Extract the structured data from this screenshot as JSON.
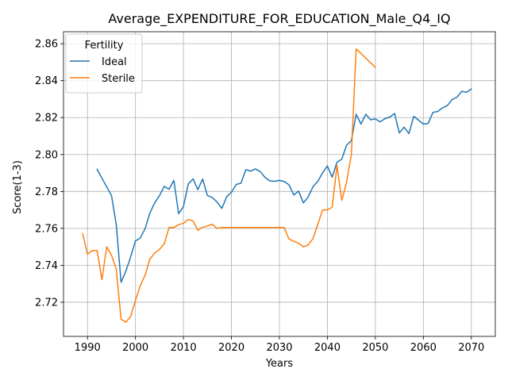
{
  "chart_data": {
    "type": "line",
    "title": "Average_EXPENDITURE_FOR_EDUCATION_Male_Q4_IQ",
    "xlabel": "Years",
    "ylabel": "Score(1-3)",
    "xlim": [
      1985,
      2075
    ],
    "ylim": [
      2.7015,
      2.8665
    ],
    "x_ticks": [
      1990,
      2000,
      2010,
      2020,
      2030,
      2040,
      2050,
      2060,
      2070
    ],
    "y_ticks": [
      2.72,
      2.74,
      2.76,
      2.78,
      2.8,
      2.82,
      2.84,
      2.86
    ],
    "y_tick_labels": [
      "2.72",
      "2.74",
      "2.76",
      "2.78",
      "2.80",
      "2.82",
      "2.84",
      "2.86"
    ],
    "grid": true,
    "legend": {
      "title": "Fertility",
      "location": "upper-left"
    },
    "series": [
      {
        "name": "Ideal",
        "color": "#1f77b4",
        "x": [
          1992,
          1993,
          1994,
          1995,
          1996,
          1997,
          1998,
          1999,
          2000,
          2001,
          2002,
          2003,
          2004,
          2005,
          2006,
          2007,
          2008,
          2009,
          2010,
          2011,
          2012,
          2013,
          2014,
          2015,
          2016,
          2017,
          2018,
          2019,
          2020,
          2021,
          2022,
          2023,
          2024,
          2025,
          2026,
          2027,
          2028,
          2029,
          2030,
          2031,
          2032,
          2033,
          2034,
          2035,
          2036,
          2037,
          2038,
          2039,
          2040,
          2041,
          2042,
          2043,
          2044,
          2045,
          2046,
          2047,
          2048,
          2049,
          2050,
          2051,
          2052,
          2053,
          2054,
          2055,
          2056,
          2057,
          2058,
          2059,
          2060,
          2061,
          2062,
          2063,
          2064,
          2065,
          2066,
          2067,
          2068,
          2069,
          2070
        ],
        "y": [
          2.792,
          2.7872,
          2.7825,
          2.7778,
          2.762,
          2.7308,
          2.7368,
          2.7446,
          2.7532,
          2.7548,
          2.7598,
          2.7683,
          2.7738,
          2.7777,
          2.7828,
          2.7812,
          2.786,
          2.768,
          2.7718,
          2.784,
          2.7868,
          2.781,
          2.7867,
          2.7778,
          2.7767,
          2.7743,
          2.7708,
          2.7771,
          2.7795,
          2.7838,
          2.7845,
          2.7918,
          2.791,
          2.7922,
          2.7908,
          2.7876,
          2.7857,
          2.7855,
          2.786,
          2.7854,
          2.7836,
          2.7781,
          2.7802,
          2.7738,
          2.777,
          2.7826,
          2.7855,
          2.79,
          2.7938,
          2.7877,
          2.7958,
          2.7975,
          2.805,
          2.8075,
          2.8218,
          2.8165,
          2.8218,
          2.8188,
          2.8193,
          2.8177,
          2.8194,
          2.8203,
          2.8222,
          2.8117,
          2.8148,
          2.8113,
          2.8207,
          2.8186,
          2.8165,
          2.8168,
          2.8228,
          2.8233,
          2.8253,
          2.8265,
          2.8298,
          2.831,
          2.8342,
          2.8337,
          2.8355
        ]
      },
      {
        "name": "Sterile",
        "color": "#ff7f0e",
        "x": [
          1989,
          1990,
          1991,
          1992,
          1993,
          1994,
          1995,
          1996,
          1997,
          1998,
          1999,
          2000,
          2001,
          2002,
          2003,
          2004,
          2005,
          2006,
          2007,
          2008,
          2009,
          2010,
          2011,
          2012,
          2013,
          2014,
          2015,
          2016,
          2017,
          2018,
          2019,
          2020,
          2021,
          2022,
          2023,
          2024,
          2025,
          2026,
          2027,
          2028,
          2029,
          2030,
          2031,
          2032,
          2033,
          2034,
          2035,
          2036,
          2037,
          2038,
          2039,
          2040,
          2041,
          2042,
          2043,
          2044,
          2045,
          2046,
          2047,
          2048,
          2049,
          2050
        ],
        "y": [
          2.7572,
          2.746,
          2.748,
          2.748,
          2.7322,
          2.75,
          2.7455,
          2.738,
          2.7108,
          2.7092,
          2.7123,
          2.721,
          2.729,
          2.7346,
          2.7434,
          2.7466,
          2.7486,
          2.7516,
          2.7605,
          2.7605,
          2.762,
          2.7628,
          2.7648,
          2.764,
          2.759,
          2.7606,
          2.7613,
          2.7622,
          2.76,
          2.7605,
          2.7605,
          2.7605,
          2.7605,
          2.7605,
          2.7605,
          2.7605,
          2.7605,
          2.7605,
          2.7605,
          2.7605,
          2.7605,
          2.7605,
          2.7605,
          2.7542,
          2.753,
          2.752,
          2.75,
          2.751,
          2.7545,
          2.7622,
          2.77,
          2.77,
          2.7715,
          2.794,
          2.7752,
          2.785,
          2.8,
          2.8572,
          2.8548,
          2.8522,
          2.8497,
          2.8472
        ]
      }
    ]
  }
}
